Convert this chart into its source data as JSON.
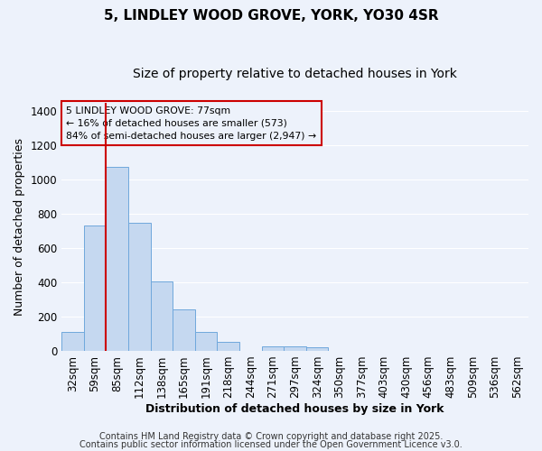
{
  "title1": "5, LINDLEY WOOD GROVE, YORK, YO30 4SR",
  "title2": "Size of property relative to detached houses in York",
  "xlabel": "Distribution of detached houses by size in York",
  "ylabel": "Number of detached properties",
  "categories": [
    "32sqm",
    "59sqm",
    "85sqm",
    "112sqm",
    "138sqm",
    "165sqm",
    "191sqm",
    "218sqm",
    "244sqm",
    "271sqm",
    "297sqm",
    "324sqm",
    "350sqm",
    "377sqm",
    "403sqm",
    "430sqm",
    "456sqm",
    "483sqm",
    "509sqm",
    "536sqm",
    "562sqm"
  ],
  "values": [
    110,
    730,
    1075,
    750,
    405,
    240,
    110,
    50,
    0,
    25,
    25,
    20,
    0,
    0,
    0,
    0,
    0,
    0,
    0,
    0,
    0
  ],
  "bar_color": "#c5d8f0",
  "bar_edge_color": "#6fa8dc",
  "bg_color": "#edf2fb",
  "grid_color": "#ffffff",
  "vline_color": "#cc0000",
  "vline_x": 1.5,
  "annotation_box_text": "5 LINDLEY WOOD GROVE: 77sqm\n← 16% of detached houses are smaller (573)\n84% of semi-detached houses are larger (2,947) →",
  "annotation_box_color": "#cc0000",
  "footer1": "Contains HM Land Registry data © Crown copyright and database right 2025.",
  "footer2": "Contains public sector information licensed under the Open Government Licence v3.0.",
  "ylim": [
    0,
    1450
  ],
  "yticks": [
    0,
    200,
    400,
    600,
    800,
    1000,
    1200,
    1400
  ],
  "title_fontsize": 11,
  "subtitle_fontsize": 10,
  "axis_fontsize": 9,
  "tick_fontsize": 8.5,
  "footer_fontsize": 7
}
